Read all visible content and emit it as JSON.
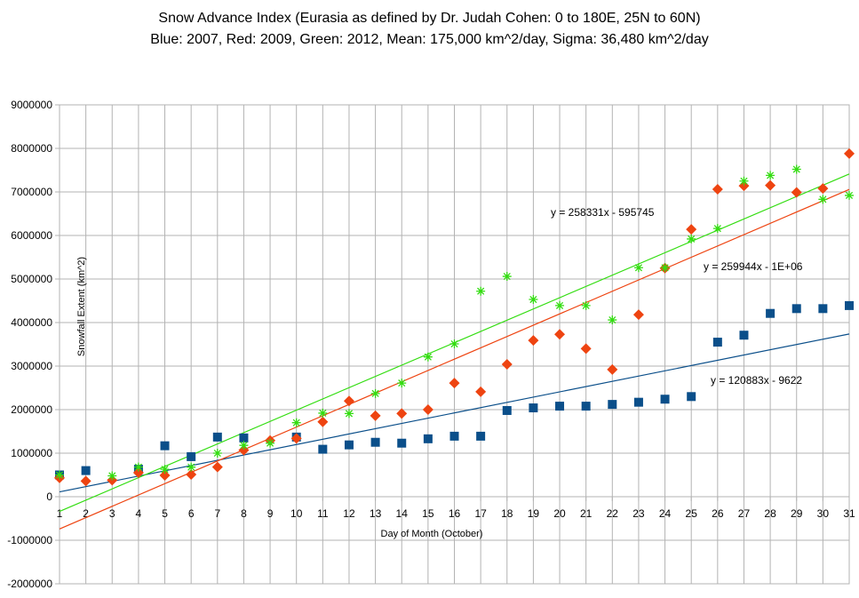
{
  "chart_data": {
    "type": "scatter",
    "title": "Snow Advance Index (Eurasia as defined by Dr. Judah Cohen: 0 to 180E, 25N to 60N)",
    "subtitle": "Blue: 2007,   Red: 2009,   Green: 2012,   Mean: 175,000 km^2/day,   Sigma: 36,480 km^2/day",
    "xlabel": "Day of Month (October)",
    "ylabel": "Snowfall Extent (km^2)",
    "xlim": [
      1,
      31
    ],
    "ylim": [
      -2000000,
      9000000
    ],
    "x_ticks": [
      "1",
      "2",
      "3",
      "4",
      "5",
      "6",
      "7",
      "8",
      "9",
      "10",
      "11",
      "12",
      "13",
      "14",
      "15",
      "16",
      "17",
      "18",
      "19",
      "20",
      "21",
      "22",
      "23",
      "24",
      "25",
      "26",
      "27",
      "28",
      "29",
      "30",
      "31"
    ],
    "y_ticks": [
      "9000000",
      "8000000",
      "7000000",
      "6000000",
      "5000000",
      "4000000",
      "3000000",
      "2000000",
      "1000000",
      "0",
      "-1000000",
      "-2000000"
    ],
    "grid": true,
    "x": [
      1,
      2,
      3,
      4,
      5,
      6,
      7,
      8,
      9,
      10,
      11,
      12,
      13,
      14,
      15,
      16,
      17,
      18,
      19,
      20,
      21,
      22,
      23,
      24,
      25,
      26,
      27,
      28,
      29,
      30,
      31
    ],
    "series": [
      {
        "color": "#0b4f8a",
        "marker": "square",
        "values": [
          500000,
          600000,
          null,
          630000,
          1170000,
          920000,
          1370000,
          1350000,
          null,
          1370000,
          1090000,
          1190000,
          1250000,
          1230000,
          1330000,
          1390000,
          1390000,
          1980000,
          2040000,
          2080000,
          2080000,
          2120000,
          2170000,
          2240000,
          2300000,
          3550000,
          3710000,
          4210000,
          4320000,
          4320000,
          4390000
        ],
        "trend": {
          "slope": 120883,
          "intercept": -9622,
          "label": "y = 120883x - 9622"
        }
      },
      {
        "color": "#ee4411",
        "marker": "diamond",
        "values": [
          430000,
          360000,
          380000,
          550000,
          490000,
          510000,
          680000,
          1070000,
          1290000,
          1340000,
          1720000,
          2200000,
          1860000,
          1910000,
          2000000,
          2610000,
          2410000,
          3040000,
          3590000,
          3730000,
          3400000,
          2920000,
          4180000,
          5250000,
          6140000,
          7060000,
          7140000,
          7150000,
          6990000,
          7080000,
          7880000
        ],
        "trend": {
          "slope": 259944,
          "intercept": -1000000,
          "label": "y = 259944x - 1E+06"
        }
      },
      {
        "color": "#33dd11",
        "marker": "asterisk",
        "values": [
          500000,
          null,
          480000,
          680000,
          630000,
          680000,
          1000000,
          1180000,
          1230000,
          1700000,
          1920000,
          1910000,
          2370000,
          2610000,
          3210000,
          3510000,
          4720000,
          5060000,
          4530000,
          4390000,
          4390000,
          4060000,
          5260000,
          5260000,
          5920000,
          6160000,
          7250000,
          7380000,
          7520000,
          6830000,
          6920000
        ],
        "trend": {
          "slope": 258331,
          "intercept": -595745,
          "label": "y = 258331x - 595745"
        }
      }
    ]
  }
}
